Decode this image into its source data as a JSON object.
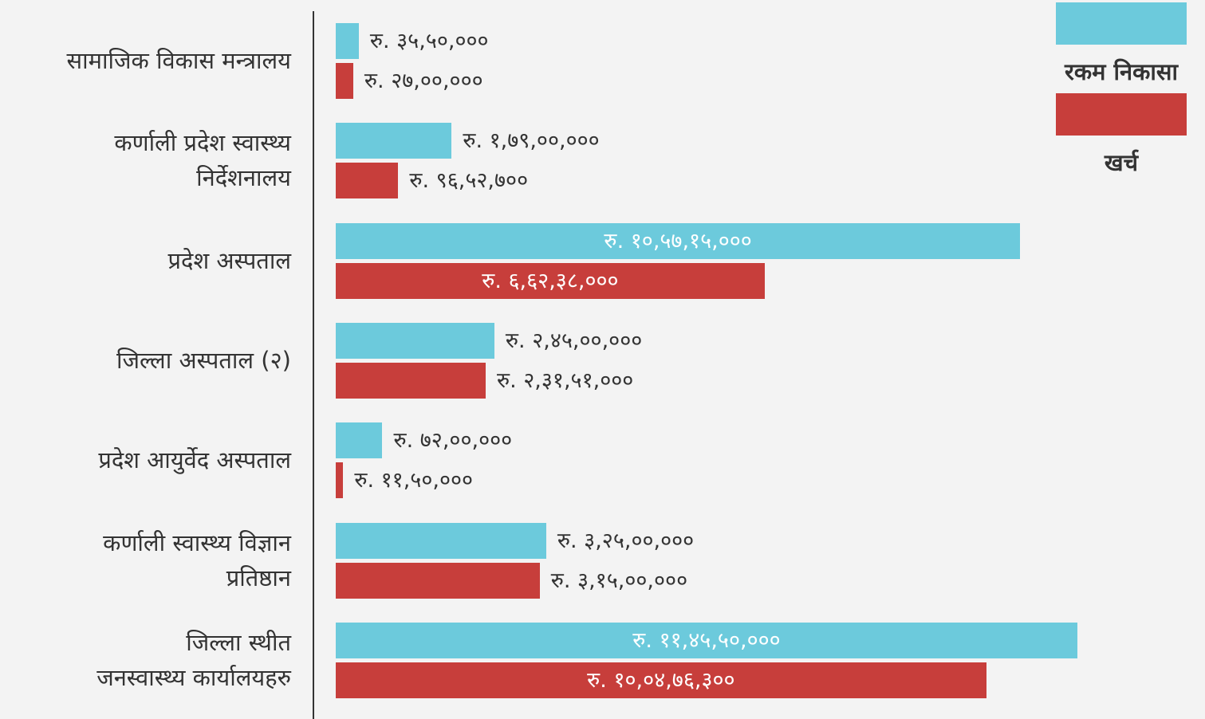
{
  "chart_data": {
    "type": "hbar",
    "categories": [
      "सामाजिक विकास मन्त्रालय",
      "कर्णाली प्रदेश स्वास्थ्य\nनिर्देशनालय",
      "प्रदेश अस्पताल",
      "जिल्ला अस्पताल (२)",
      "प्रदेश आयुर्वेद अस्पताल",
      "कर्णाली स्वास्थ्य विज्ञान\nप्रतिष्ठान",
      "जिल्ला स्थीत\nजनस्वास्थ्य कार्यालयहरु"
    ],
    "series": [
      {
        "name": "रकम निकासा",
        "color": "#6ccadc",
        "values": [
          3550000,
          17900000,
          105715000,
          24500000,
          7200000,
          32500000,
          114550000
        ],
        "value_labels": [
          "रु. ३५,५०,०००",
          "रु. १,७९,००,०००",
          "रु. १०,५७,१५,०००",
          "रु. २,४५,००,०००",
          "रु. ७२,००,०००",
          "रु. ३,२५,००,०००",
          "रु. ११,४५,५०,०००"
        ]
      },
      {
        "name": "खर्च",
        "color": "#c73e3b",
        "values": [
          2700000,
          9652700,
          66238000,
          23151000,
          1150000,
          31500000,
          100476300
        ],
        "value_labels": [
          "रु. २७,००,०००",
          "रु. ९६,५२,७००",
          "रु. ६,६२,३८,०००",
          "रु. २,३१,५१,०००",
          "रु. ११,५०,०००",
          "रु. ३,१५,००,०००",
          "रु. १०,०४,७६,३००"
        ]
      }
    ],
    "legend": "top-right"
  }
}
